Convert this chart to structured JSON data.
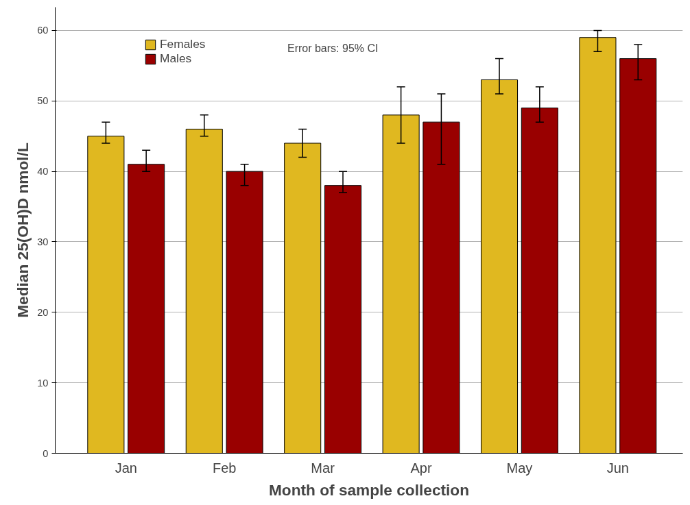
{
  "chart_data": {
    "type": "bar",
    "xlabel": "Month of sample collection",
    "ylabel": "Median 25(OH)D nmol/L",
    "categories": [
      "Jan",
      "Feb",
      "Mar",
      "Apr",
      "May",
      "Jun"
    ],
    "series": [
      {
        "name": "Females",
        "color": "#e0b820",
        "values": [
          45,
          46,
          44,
          48,
          53,
          59
        ],
        "errors": [
          [
            44,
            47
          ],
          [
            45,
            48
          ],
          [
            42,
            46
          ],
          [
            44,
            52
          ],
          [
            51,
            56
          ],
          [
            57,
            60
          ]
        ]
      },
      {
        "name": "Males",
        "color": "#990000",
        "values": [
          41,
          40,
          38,
          47,
          49,
          56
        ],
        "errors": [
          [
            40,
            43
          ],
          [
            38,
            41
          ],
          [
            37,
            40
          ],
          [
            41,
            51
          ],
          [
            47,
            52
          ],
          [
            53,
            58
          ]
        ]
      }
    ],
    "ylim": [
      0,
      63.3
    ],
    "yticks": [
      0,
      10,
      20,
      30,
      40,
      50,
      60
    ],
    "grid": "y",
    "legend": "top left",
    "annotations": [
      "Error bars: 95% CI"
    ]
  }
}
